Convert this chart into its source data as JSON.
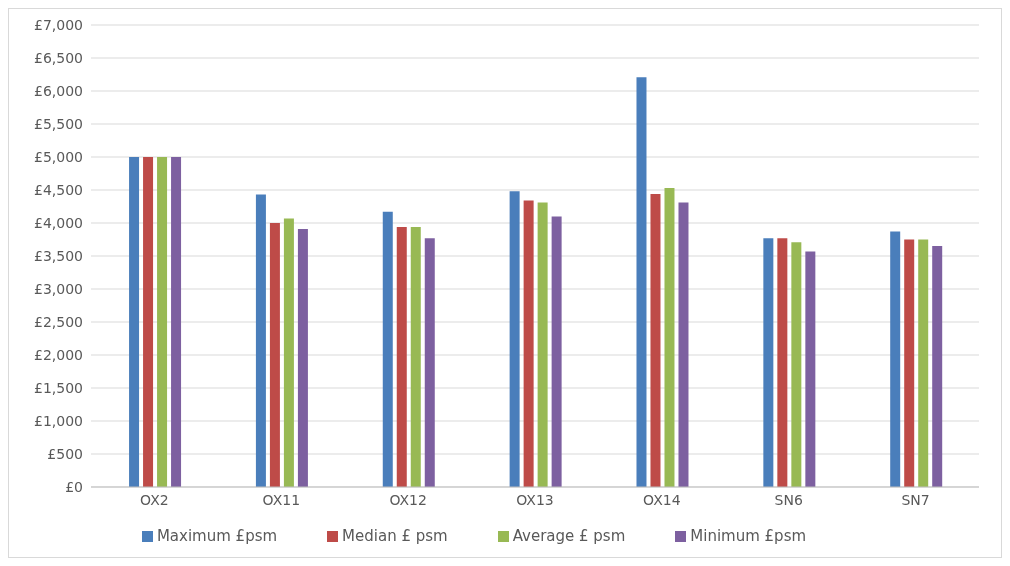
{
  "chart_data": {
    "type": "bar",
    "categories": [
      "OX2",
      "OX11",
      "OX12",
      "OX13",
      "OX14",
      "SN6",
      "SN7"
    ],
    "series": [
      {
        "name": "Maximum £psm",
        "color": "#4a7ebb",
        "values": [
          5000,
          4430,
          4170,
          4480,
          6210,
          3770,
          3870
        ]
      },
      {
        "name": "Median £ psm",
        "color": "#be4b48",
        "values": [
          5000,
          4000,
          3940,
          4340,
          4440,
          3770,
          3750
        ]
      },
      {
        "name": "Average £ psm",
        "color": "#98b954",
        "values": [
          5000,
          4070,
          3940,
          4310,
          4530,
          3710,
          3750
        ]
      },
      {
        "name": "Minimum £psm",
        "color": "#7d60a0",
        "values": [
          5000,
          3910,
          3770,
          4100,
          4310,
          3570,
          3650
        ]
      }
    ],
    "ylim": [
      0,
      7000
    ],
    "yticks": [
      {
        "value": 0,
        "label": "£0"
      },
      {
        "value": 500,
        "label": "£500"
      },
      {
        "value": 1000,
        "label": "£1,000"
      },
      {
        "value": 1500,
        "label": "£1,500"
      },
      {
        "value": 2000,
        "label": "£2,000"
      },
      {
        "value": 2500,
        "label": "£2,500"
      },
      {
        "value": 3000,
        "label": "£3,000"
      },
      {
        "value": 3500,
        "label": "£3,500"
      },
      {
        "value": 4000,
        "label": "£4,000"
      },
      {
        "value": 4500,
        "label": "£4,500"
      },
      {
        "value": 5000,
        "label": "£5,000"
      },
      {
        "value": 5500,
        "label": "£5,500"
      },
      {
        "value": 6000,
        "label": "£6,000"
      },
      {
        "value": 6500,
        "label": "£6,500"
      },
      {
        "value": 7000,
        "label": "£7,000"
      }
    ],
    "grid": "y",
    "legend": "bottom"
  }
}
